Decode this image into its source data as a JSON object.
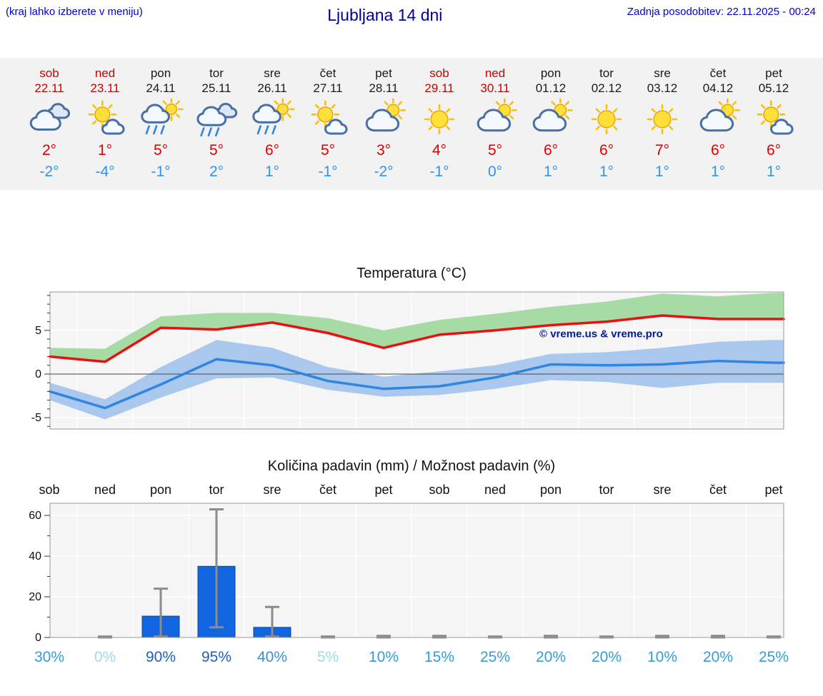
{
  "header": {
    "menu_hint": "(kraj lahko izberete v meniju)",
    "title": "Ljubljana 14 dni",
    "last_update": "Zadnja posodobitev: 22.11.2025 - 00:24"
  },
  "colors": {
    "link_blue": "#0000cc",
    "title_navy": "#000099",
    "day_red": "#cc0000",
    "day_black": "#1a1a1a",
    "tmax_red": "#dd0000",
    "tmin_blue": "#3093ef",
    "strip_bg": "#f2f2f2",
    "plot_bg": "#f5f5f5",
    "plot_border": "#999999",
    "grid_white": "#ffffff",
    "temp_max_line": "#e81111",
    "temp_max_band": "#a6dba6",
    "temp_min_line": "#2f85e0",
    "temp_min_band": "#aac8ee",
    "zero_line": "#444444",
    "bar_fill": "#1166e0",
    "bar_edge": "#0b46a0",
    "whisker_gray": "#8c8c8c",
    "watermark_navy": "#001a99"
  },
  "forecast_strip": {
    "days": [
      {
        "name": "sob",
        "date": "22.11",
        "holiday": true,
        "icon": "cloudy",
        "tmax": "2°",
        "tmin": "-2°"
      },
      {
        "name": "ned",
        "date": "23.11",
        "holiday": true,
        "icon": "sun-small-cloud",
        "tmax": "1°",
        "tmin": "-4°"
      },
      {
        "name": "pon",
        "date": "24.11",
        "holiday": false,
        "icon": "rain-sun",
        "tmax": "5°",
        "tmin": "-1°"
      },
      {
        "name": "tor",
        "date": "25.11",
        "holiday": false,
        "icon": "rain",
        "tmax": "5°",
        "tmin": "2°"
      },
      {
        "name": "sre",
        "date": "26.11",
        "holiday": false,
        "icon": "rain-sun",
        "tmax": "6°",
        "tmin": "1°"
      },
      {
        "name": "čet",
        "date": "27.11",
        "holiday": false,
        "icon": "sun-small-cloud",
        "tmax": "5°",
        "tmin": "-1°"
      },
      {
        "name": "pet",
        "date": "28.11",
        "holiday": false,
        "icon": "cloud-sun",
        "tmax": "3°",
        "tmin": "-2°"
      },
      {
        "name": "sob",
        "date": "29.11",
        "holiday": true,
        "icon": "sun",
        "tmax": "4°",
        "tmin": "-1°"
      },
      {
        "name": "ned",
        "date": "30.11",
        "holiday": true,
        "icon": "cloud-sun",
        "tmax": "5°",
        "tmin": "0°"
      },
      {
        "name": "pon",
        "date": "01.12",
        "holiday": false,
        "icon": "cloud-sun",
        "tmax": "6°",
        "tmin": "1°"
      },
      {
        "name": "tor",
        "date": "02.12",
        "holiday": false,
        "icon": "sun",
        "tmax": "6°",
        "tmin": "1°"
      },
      {
        "name": "sre",
        "date": "03.12",
        "holiday": false,
        "icon": "sun",
        "tmax": "7°",
        "tmin": "1°"
      },
      {
        "name": "čet",
        "date": "04.12",
        "holiday": false,
        "icon": "cloud-sun",
        "tmax": "6°",
        "tmin": "1°"
      },
      {
        "name": "pet",
        "date": "05.12",
        "holiday": false,
        "icon": "sun-small-cloud",
        "tmax": "6°",
        "tmin": "1°"
      }
    ]
  },
  "chart_data": [
    {
      "type": "line",
      "title": "Temperatura (°C)",
      "watermark": "© vreme.us & vreme.pro",
      "categories": [
        "sob 22.11",
        "ned 23.11",
        "pon 24.11",
        "tor 25.11",
        "sre 26.11",
        "čet 27.11",
        "pet 28.11",
        "sob 29.11",
        "ned 30.11",
        "pon 01.12",
        "tor 02.12",
        "sre 03.12",
        "čet 04.12",
        "pet 05.12"
      ],
      "ylim": [
        -6.3,
        9.4
      ],
      "yticks": [
        5,
        0,
        -5
      ],
      "grid": true,
      "legend": "none",
      "series": [
        {
          "name": "max-temperatura",
          "color": "#e81111",
          "values": [
            2.0,
            1.4,
            5.3,
            5.1,
            5.9,
            4.7,
            3.0,
            4.5,
            5.0,
            5.6,
            6.0,
            6.7,
            6.3,
            6.3
          ]
        },
        {
          "name": "min-temperatura",
          "color": "#2f85e0",
          "values": [
            -2.0,
            -3.9,
            -1.2,
            1.7,
            1.0,
            -0.8,
            -1.7,
            -1.4,
            -0.4,
            1.1,
            1.0,
            1.1,
            1.5,
            1.3
          ]
        }
      ],
      "bands": [
        {
          "name": "max-razpon",
          "color": "#a6dba6",
          "upper": [
            3.0,
            2.9,
            6.6,
            7.0,
            7.0,
            6.4,
            5.0,
            6.2,
            6.9,
            7.7,
            8.3,
            9.2,
            8.9,
            9.3
          ],
          "lower": [
            2.0,
            1.4,
            5.3,
            5.1,
            5.9,
            4.7,
            3.0,
            4.5,
            5.0,
            5.6,
            6.0,
            6.7,
            6.3,
            6.3
          ]
        },
        {
          "name": "min-razpon",
          "color": "#aac8ee",
          "upper": [
            -1.0,
            -2.9,
            0.8,
            3.9,
            3.0,
            0.8,
            -0.3,
            0.3,
            1.0,
            2.3,
            2.5,
            3.0,
            3.7,
            3.9
          ],
          "lower": [
            -3.0,
            -5.2,
            -2.7,
            -0.5,
            -0.4,
            -1.8,
            -2.6,
            -2.4,
            -1.7,
            -0.7,
            -0.9,
            -1.6,
            -1.0,
            -1.0
          ]
        }
      ]
    },
    {
      "type": "bar",
      "title": "Količina padavin (mm) / Možnost padavin (%)",
      "categories": [
        "sob",
        "ned",
        "pon",
        "tor",
        "sre",
        "čet",
        "pet",
        "sob",
        "ned",
        "pon",
        "tor",
        "sre",
        "čet",
        "pet"
      ],
      "ylim": [
        0,
        66
      ],
      "yticks": [
        60,
        40,
        20,
        0
      ],
      "values": [
        0,
        0,
        10.5,
        35,
        5,
        0,
        0,
        0,
        0,
        0,
        0,
        0,
        0,
        0
      ],
      "error_low": [
        0,
        0,
        0.5,
        5,
        0.5,
        0,
        0,
        0,
        0,
        0,
        0,
        0,
        0,
        0
      ],
      "error_high": [
        0,
        0.5,
        24,
        63,
        15,
        0.5,
        0.8,
        0.8,
        0.5,
        0.8,
        0.5,
        0.8,
        0.8,
        0.5
      ],
      "probabilities": [
        {
          "label": "30%",
          "color": "#2f9fd8"
        },
        {
          "label": "0%",
          "color": "#9fdbec"
        },
        {
          "label": "90%",
          "color": "#1f5fc4"
        },
        {
          "label": "95%",
          "color": "#1f5fc4"
        },
        {
          "label": "40%",
          "color": "#3a8fd8"
        },
        {
          "label": "5%",
          "color": "#9fdbec"
        },
        {
          "label": "10%",
          "color": "#2f9fd8"
        },
        {
          "label": "15%",
          "color": "#2f9fd8"
        },
        {
          "label": "25%",
          "color": "#2f9fd8"
        },
        {
          "label": "20%",
          "color": "#2f9fd8"
        },
        {
          "label": "20%",
          "color": "#2f9fd8"
        },
        {
          "label": "10%",
          "color": "#2f9fd8"
        },
        {
          "label": "20%",
          "color": "#2f9fd8"
        },
        {
          "label": "25%",
          "color": "#2f9fd8"
        }
      ]
    }
  ]
}
